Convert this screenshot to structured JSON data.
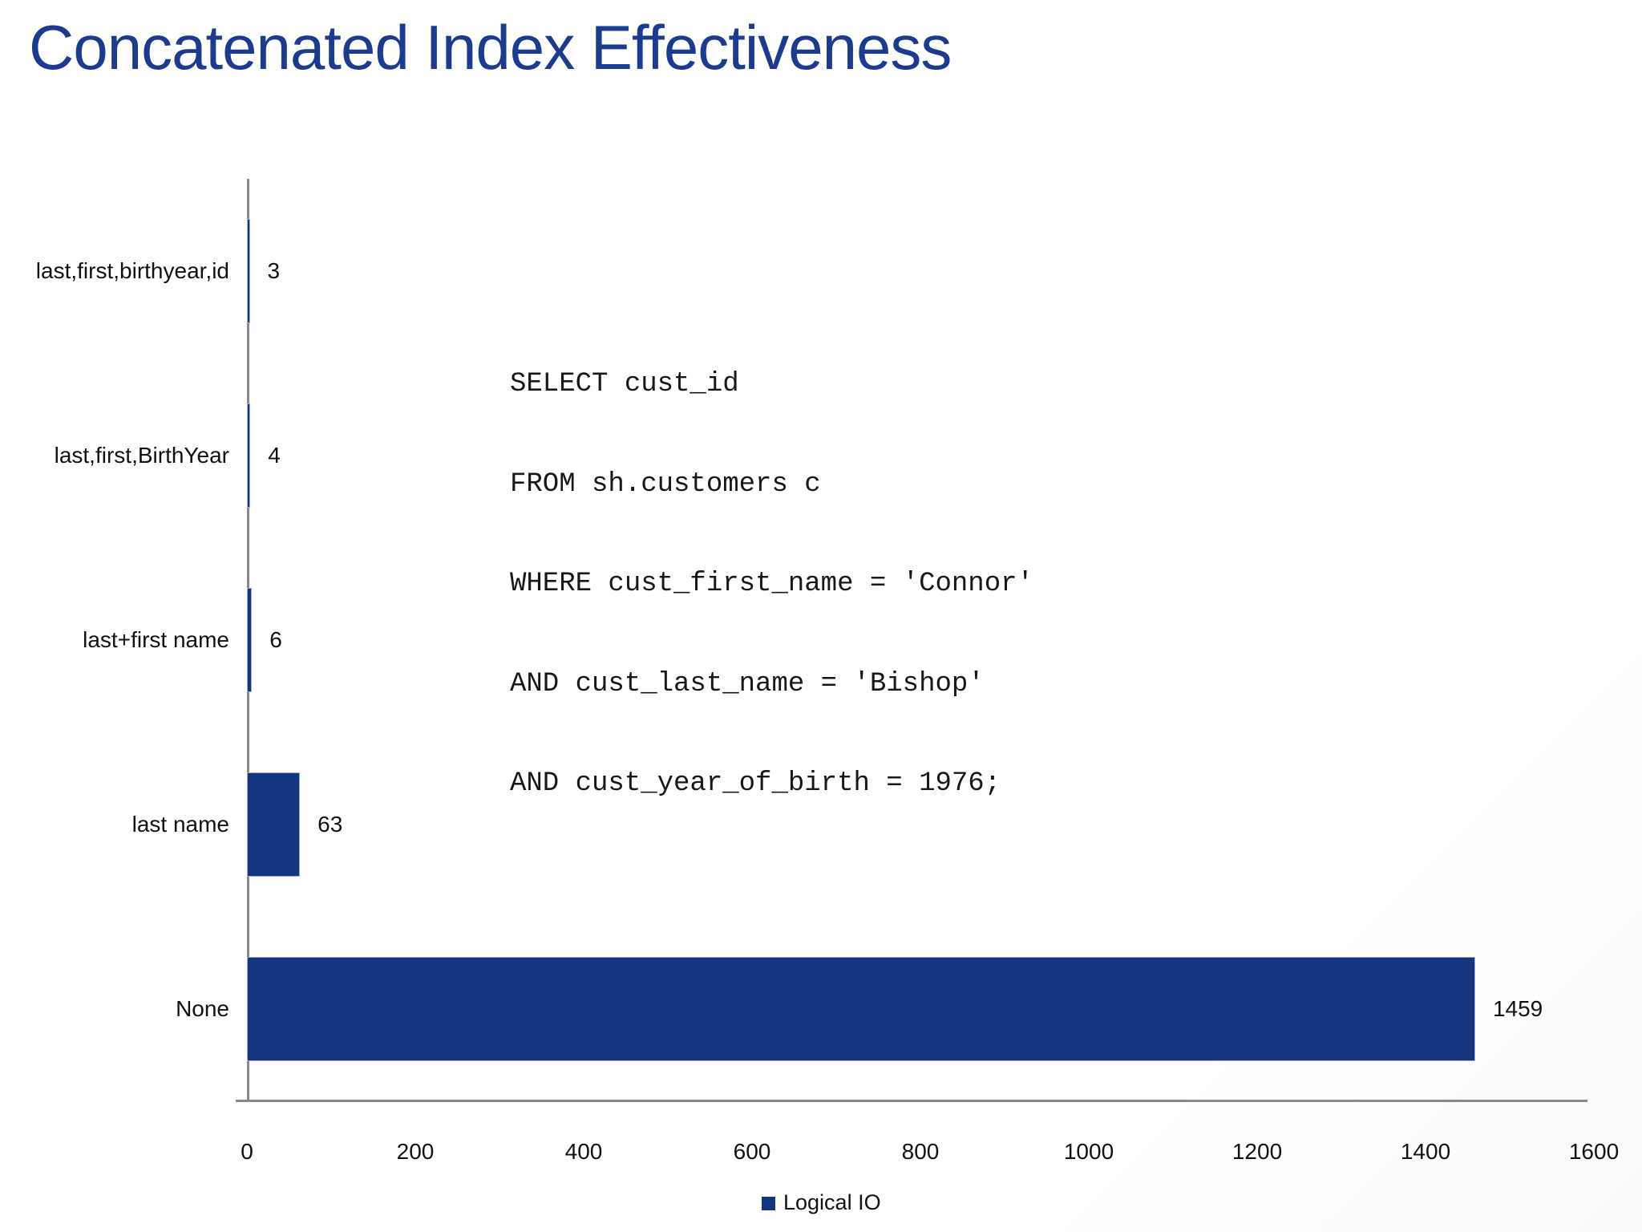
{
  "title": "Concatenated Index Effectiveness",
  "sql": {
    "lines": [
      "SELECT cust_id",
      "FROM sh.customers c",
      "WHERE cust_first_name = 'Connor'",
      "AND cust_last_name = 'Bishop'",
      "AND cust_year_of_birth = 1976;"
    ]
  },
  "legend": {
    "label": "Logical IO"
  },
  "colors": {
    "title": "#1B3A90",
    "bar": "#15357E",
    "bar_border": "#A5ACD8",
    "axis": "#8a8a8a"
  },
  "chart_data": {
    "type": "bar",
    "orientation": "horizontal",
    "title": "Concatenated Index Effectiveness",
    "series_name": "Logical IO",
    "categories": [
      "last,first,birthyear,id",
      "last,first,BirthYear",
      "last+first name",
      "last name",
      "None"
    ],
    "values": [
      3,
      4,
      6,
      63,
      1459
    ],
    "value_labels": [
      "3",
      "4",
      "6",
      "63",
      "1459"
    ],
    "x_ticks": [
      0,
      200,
      400,
      600,
      800,
      1000,
      1200,
      1400,
      1600
    ],
    "xlim": [
      0,
      1600
    ],
    "xlabel": "",
    "ylabel": "",
    "grid": false,
    "legend_position": "bottom"
  }
}
